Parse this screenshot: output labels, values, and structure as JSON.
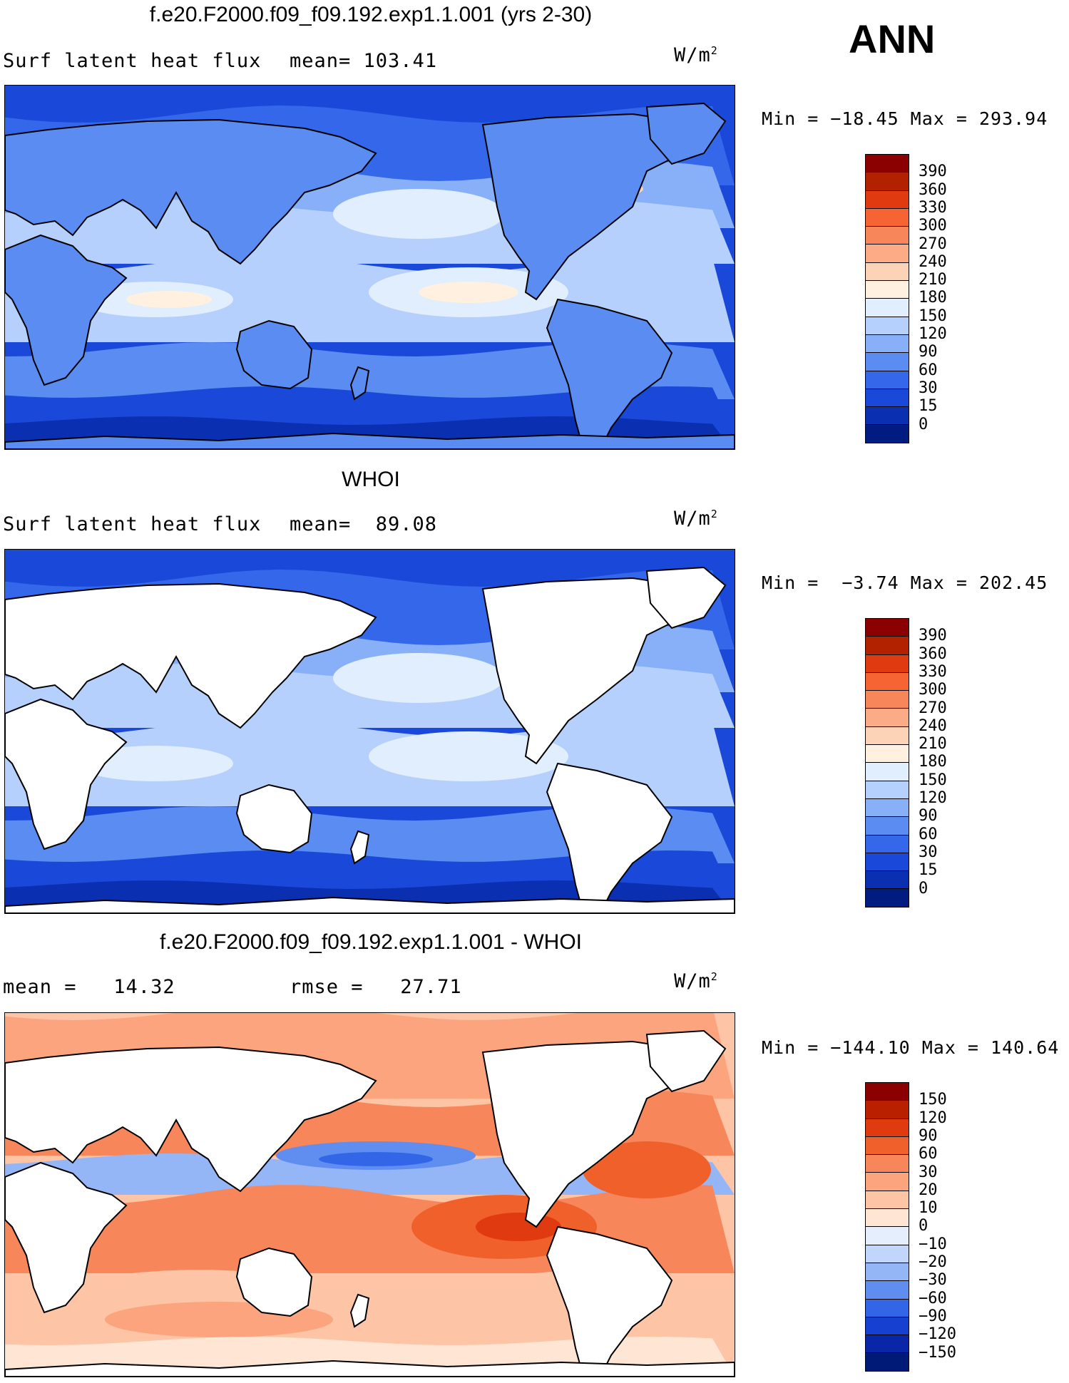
{
  "season": "ANN",
  "units_base": "W/m",
  "units_exp": "2",
  "panels": [
    {
      "title": "f.e20.F2000.f09_f09.192.exp1.1.001 (yrs 2-30)",
      "left_text": "Surf latent heat flux",
      "mid_text": "mean= 103.41",
      "minmax": "Min = −18.45 Max = 293.94",
      "fill_mode": "full",
      "colorbar": {
        "labels": [
          "390",
          "360",
          "330",
          "300",
          "270",
          "240",
          "210",
          "180",
          "150",
          "120",
          "90",
          "60",
          "30",
          "15",
          "0"
        ],
        "colors": [
          "#8b0000",
          "#b22200",
          "#e03a10",
          "#f56432",
          "#f7875a",
          "#fbab86",
          "#fdd3b8",
          "#fff0e0",
          "#e0eefe",
          "#b5d0fc",
          "#88b0f8",
          "#5a8cf2",
          "#3567ea",
          "#1a48d8",
          "#0a2fb0",
          "#001c80"
        ]
      }
    },
    {
      "title": "WHOI",
      "left_text": "Surf latent heat flux",
      "mid_text": "mean=  89.08",
      "minmax": "Min =  −3.74 Max = 202.45",
      "fill_mode": "ocean",
      "colorbar": {
        "labels": [
          "390",
          "360",
          "330",
          "300",
          "270",
          "240",
          "210",
          "180",
          "150",
          "120",
          "90",
          "60",
          "30",
          "15",
          "0"
        ],
        "colors": [
          "#8b0000",
          "#b22200",
          "#e03a10",
          "#f56432",
          "#f7875a",
          "#fbab86",
          "#fdd3b8",
          "#fff0e0",
          "#e0eefe",
          "#b5d0fc",
          "#88b0f8",
          "#5a8cf2",
          "#3567ea",
          "#1a48d8",
          "#0a2fb0",
          "#001c80"
        ]
      }
    },
    {
      "title": "f.e20.F2000.f09_f09.192.exp1.1.001 - WHOI",
      "left_text": "mean =   14.32",
      "mid_text": "rmse =   27.71",
      "minmax": "Min = −144.10 Max = 140.64",
      "fill_mode": "diff",
      "colorbar": {
        "labels": [
          "150",
          "120",
          "90",
          "60",
          "30",
          "20",
          "10",
          "0",
          "−10",
          "−20",
          "−30",
          "−60",
          "−90",
          "−120",
          "−150"
        ],
        "colors": [
          "#8b0000",
          "#b82000",
          "#e03a10",
          "#f0602a",
          "#f7875a",
          "#fba47e",
          "#fdc4a6",
          "#ffe6d4",
          "#e4eefc",
          "#c0d6fa",
          "#94b6f6",
          "#5f8ef0",
          "#3366e6",
          "#1640d0",
          "#0a26a8",
          "#001a78"
        ]
      }
    }
  ],
  "chart_data": {
    "type": "heatmap",
    "variable": "Surf latent heat flux",
    "units": "W/m2",
    "season": "ANN",
    "panels": [
      {
        "name": "f.e20.F2000.f09_f09.192.exp1.1.001 (yrs 2-30)",
        "mean": 103.41,
        "min": -18.45,
        "max": 293.94
      },
      {
        "name": "WHOI",
        "mean": 89.08,
        "min": -3.74,
        "max": 202.45
      },
      {
        "name": "f.e20.F2000.f09_f09.192.exp1.1.001 - WHOI",
        "mean": 14.32,
        "rmse": 27.71,
        "min": -144.1,
        "max": 140.64
      }
    ]
  }
}
